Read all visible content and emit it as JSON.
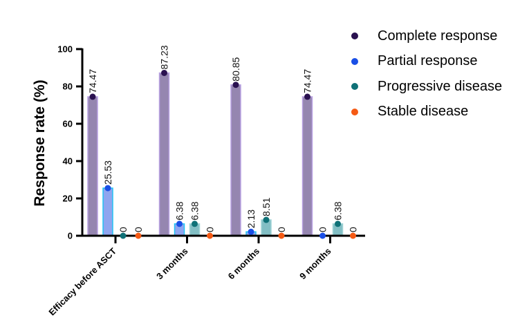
{
  "chart_data": {
    "type": "bar",
    "title": "",
    "xlabel": "",
    "ylabel": "Response rate (%)",
    "ylim": [
      0,
      100
    ],
    "yticks": [
      0,
      20,
      40,
      60,
      80,
      100
    ],
    "ytick_labels": [
      "0",
      "20",
      "40",
      "60",
      "80",
      "100"
    ],
    "grid": false,
    "legend_position": "top-right",
    "categories": [
      "Efficacy before ASCT",
      "3 months",
      "6 months",
      "9 months"
    ],
    "series": [
      {
        "name": "Complete response",
        "values": [
          74.47,
          87.23,
          80.85,
          74.47
        ],
        "labels": [
          "74.47",
          "87.23",
          "80.85",
          "74.47"
        ],
        "dot_color": "#2a1150",
        "bar_fill": "#9586b0",
        "bar_edge": "#b9a2e3"
      },
      {
        "name": "Partial response",
        "values": [
          25.53,
          6.38,
          2.13,
          0
        ],
        "labels": [
          "25.53",
          "6.38",
          "2.13",
          "0"
        ],
        "dot_color": "#1a4fe6",
        "bar_fill": "#8fa5ef",
        "bar_edge": "#20c4f4"
      },
      {
        "name": "Progressive disease",
        "values": [
          0,
          6.38,
          8.51,
          6.38
        ],
        "labels": [
          "0",
          "6.38",
          "8.51",
          "6.38"
        ],
        "dot_color": "#0f7177",
        "bar_fill": "#82bec4",
        "bar_edge": "#9fd3d6"
      },
      {
        "name": "Stable disease",
        "values": [
          0,
          0,
          0,
          0
        ],
        "labels": [
          "0",
          "0",
          "0",
          "0"
        ],
        "dot_color": "#f55a14",
        "bar_fill": "#f79a6c",
        "bar_edge": "#f7b08c"
      }
    ]
  }
}
